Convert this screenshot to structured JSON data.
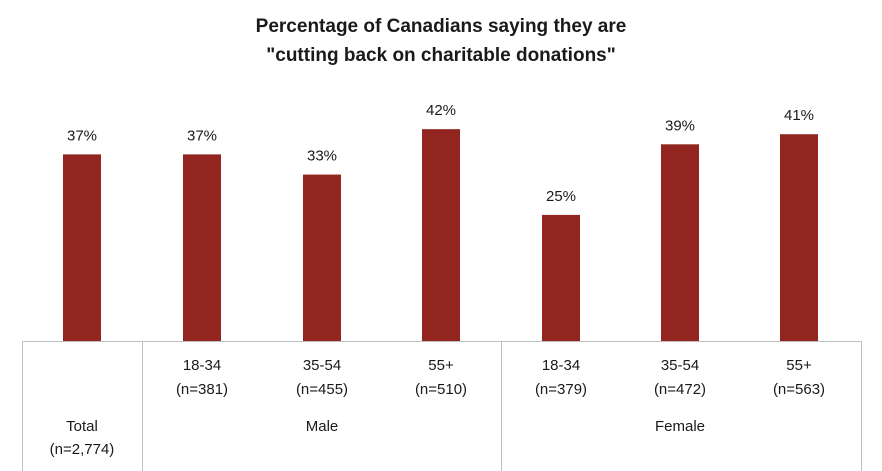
{
  "chart_data": {
    "type": "bar",
    "title": "Percentage of Canadians saying they are",
    "subtitle": "\"cutting back on charitable donations\"",
    "categories": [
      {
        "label": "Total",
        "n": "(n=2,774)",
        "group": ""
      },
      {
        "label": "18-34",
        "n": "(n=381)",
        "group": "Male"
      },
      {
        "label": "35-54",
        "n": "(n=455)",
        "group": "Male"
      },
      {
        "label": "55+",
        "n": "(n=510)",
        "group": "Male"
      },
      {
        "label": "18-34",
        "n": "(n=379)",
        "group": "Female"
      },
      {
        "label": "35-54",
        "n": "(n=472)",
        "group": "Female"
      },
      {
        "label": "55+",
        "n": "(n=563)",
        "group": "Female"
      }
    ],
    "values": [
      37,
      37,
      33,
      42,
      25,
      39,
      41
    ],
    "value_labels": [
      "37%",
      "37%",
      "33%",
      "42%",
      "25%",
      "39%",
      "41%"
    ],
    "groups": [
      "Male",
      "Female"
    ],
    "ylim": [
      0,
      46
    ],
    "unit": "%",
    "bar_color": "#922520",
    "grid": false,
    "legend": "none"
  }
}
